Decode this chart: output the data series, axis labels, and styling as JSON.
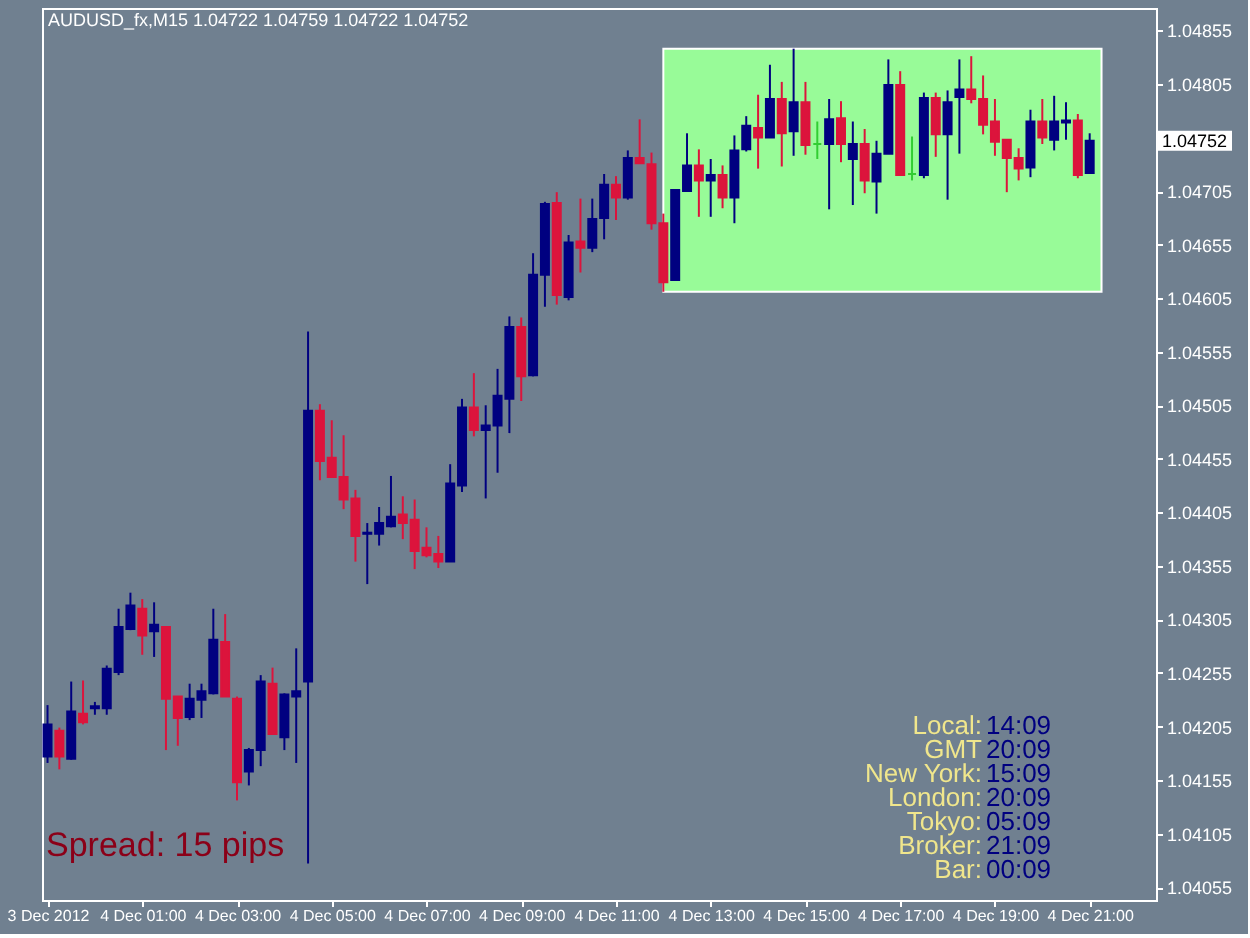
{
  "chart_data": {
    "type": "candlestick",
    "title": "AUDUSD_fx,M15  1.04722 1.04759 1.04722 1.04752",
    "x": [
      "2012-12-03T23:00",
      "2012-12-03T23:15",
      "2012-12-03T23:30",
      "2012-12-03T23:45",
      "2012-12-04T00:00",
      "2012-12-04T00:15",
      "2012-12-04T00:30",
      "2012-12-04T00:45",
      "2012-12-04T01:00",
      "2012-12-04T01:15",
      "2012-12-04T01:30",
      "2012-12-04T01:45",
      "2012-12-04T02:00",
      "2012-12-04T02:15",
      "2012-12-04T02:30",
      "2012-12-04T02:45",
      "2012-12-04T03:00",
      "2012-12-04T03:15",
      "2012-12-04T03:30",
      "2012-12-04T03:45",
      "2012-12-04T04:00",
      "2012-12-04T04:15",
      "2012-12-04T04:30",
      "2012-12-04T04:45",
      "2012-12-04T05:00",
      "2012-12-04T05:15",
      "2012-12-04T05:30",
      "2012-12-04T05:45",
      "2012-12-04T06:00",
      "2012-12-04T06:15",
      "2012-12-04T06:30",
      "2012-12-04T06:45",
      "2012-12-04T07:00",
      "2012-12-04T07:15",
      "2012-12-04T07:30",
      "2012-12-04T07:45",
      "2012-12-04T08:00",
      "2012-12-04T08:15",
      "2012-12-04T08:30",
      "2012-12-04T08:45",
      "2012-12-04T09:00",
      "2012-12-04T09:15",
      "2012-12-04T09:30",
      "2012-12-04T09:45",
      "2012-12-04T10:00",
      "2012-12-04T10:15",
      "2012-12-04T10:30",
      "2012-12-04T10:45",
      "2012-12-04T11:00",
      "2012-12-04T11:15",
      "2012-12-04T11:30",
      "2012-12-04T11:45",
      "2012-12-04T12:00",
      "2012-12-04T12:15",
      "2012-12-04T12:30",
      "2012-12-04T12:45",
      "2012-12-04T13:00",
      "2012-12-04T13:15",
      "2012-12-04T13:30",
      "2012-12-04T13:45",
      "2012-12-04T14:00",
      "2012-12-04T14:15",
      "2012-12-04T14:30",
      "2012-12-04T14:45",
      "2012-12-04T15:00",
      "2012-12-04T15:15",
      "2012-12-04T15:30",
      "2012-12-04T15:45",
      "2012-12-04T16:00",
      "2012-12-04T16:15",
      "2012-12-04T16:30",
      "2012-12-04T16:45",
      "2012-12-04T17:00",
      "2012-12-04T17:15",
      "2012-12-04T17:30",
      "2012-12-04T17:45",
      "2012-12-04T18:00",
      "2012-12-04T18:15",
      "2012-12-04T18:30",
      "2012-12-04T18:45",
      "2012-12-04T19:00",
      "2012-12-04T19:15",
      "2012-12-04T19:30",
      "2012-12-04T19:45",
      "2012-12-04T20:00",
      "2012-12-04T20:15",
      "2012-12-04T20:30",
      "2012-12-04T20:45",
      "2012-12-04T21:00"
    ],
    "ohlc": [
      [
        1.04177,
        1.04225,
        1.04171,
        1.04207
      ],
      [
        1.04201,
        1.04204,
        1.04165,
        1.04177
      ],
      [
        1.04175,
        1.04247,
        1.04174,
        1.04219
      ],
      [
        1.04217,
        1.04248,
        1.04207,
        1.04209
      ],
      [
        1.04222,
        1.04228,
        1.04216,
        1.04224
      ],
      [
        1.04222,
        1.04262,
        1.04216,
        1.04259
      ],
      [
        1.04256,
        1.04315,
        1.04253,
        1.04298
      ],
      [
        1.04296,
        1.0433,
        1.04295,
        1.04318
      ],
      [
        1.04315,
        1.04324,
        1.04272,
        1.0429
      ],
      [
        1.04294,
        1.04321,
        1.0427,
        1.043
      ],
      [
        1.04298,
        1.04298,
        1.04183,
        1.04231
      ],
      [
        1.04233,
        1.04233,
        1.04187,
        1.04213
      ],
      [
        1.04214,
        1.04245,
        1.04211,
        1.04231
      ],
      [
        1.0423,
        1.04245,
        1.04213,
        1.04238
      ],
      [
        1.04236,
        1.04315,
        1.04235,
        1.04286
      ],
      [
        1.04284,
        1.0431,
        1.04233,
        1.04233
      ],
      [
        1.04231,
        1.04233,
        1.04136,
        1.04153
      ],
      [
        1.04163,
        1.04185,
        1.0415,
        1.04183
      ],
      [
        1.04183,
        1.04253,
        1.04168,
        1.04247
      ],
      [
        1.04245,
        1.0426,
        1.04198,
        1.04198
      ],
      [
        1.04195,
        1.04236,
        1.04183,
        1.04235
      ],
      [
        1.04233,
        1.04278,
        1.04171,
        1.04238
      ],
      [
        1.04247,
        1.04574,
        1.04077,
        1.045
      ],
      [
        1.045,
        1.04506,
        1.04435,
        1.04453
      ],
      [
        1.04456,
        1.04491,
        1.04438,
        1.04438
      ],
      [
        1.04438,
        1.04477,
        1.04408,
        1.04417
      ],
      [
        1.04418,
        1.04426,
        1.04359,
        1.04383
      ],
      [
        1.04385,
        1.04395,
        1.04338,
        1.04386
      ],
      [
        1.04385,
        1.0441,
        1.04374,
        1.04395
      ],
      [
        1.04392,
        1.04439,
        1.04391,
        1.04401
      ],
      [
        1.04403,
        1.0442,
        1.0438,
        1.04395
      ],
      [
        1.04398,
        1.04417,
        1.04352,
        1.04369
      ],
      [
        1.04372,
        1.04391,
        1.04363,
        1.04365
      ],
      [
        1.04366,
        1.04383,
        1.04353,
        1.04359
      ],
      [
        1.04359,
        1.0445,
        1.04359,
        1.04432
      ],
      [
        1.0443,
        1.04511,
        1.04424,
        1.04503
      ],
      [
        1.04503,
        1.04535,
        1.04476,
        1.04482
      ],
      [
        1.04482,
        1.04505,
        1.04418,
        1.04486
      ],
      [
        1.04486,
        1.04539,
        1.04442,
        1.04514
      ],
      [
        1.04511,
        1.04588,
        1.04479,
        1.04578
      ],
      [
        1.04578,
        1.04587,
        1.04509,
        1.04532
      ],
      [
        1.04533,
        1.04647,
        1.04532,
        1.04627
      ],
      [
        1.04627,
        1.04695,
        1.04597,
        1.04693
      ],
      [
        1.04694,
        1.04704,
        1.04599,
        1.04608
      ],
      [
        1.04606,
        1.04664,
        1.04603,
        1.04657
      ],
      [
        1.04658,
        1.04698,
        1.04629,
        1.04652
      ],
      [
        1.04652,
        1.04698,
        1.04648,
        1.04679
      ],
      [
        1.0468,
        1.04721,
        1.0466,
        1.04711
      ],
      [
        1.04711,
        1.04719,
        1.04678,
        1.04699
      ],
      [
        1.04699,
        1.04743,
        1.04697,
        1.04736
      ],
      [
        1.04736,
        1.04772,
        1.04731,
        1.04731
      ],
      [
        1.0473,
        1.04741,
        1.04669,
        1.04675
      ],
      [
        1.04675,
        1.04684,
        1.04611,
        1.0462
      ],
      [
        1.04622,
        1.04706,
        1.04622,
        1.04706
      ],
      [
        1.04705,
        1.04759,
        1.04705,
        1.04729
      ],
      [
        1.04729,
        1.04744,
        1.04681,
        1.04715
      ],
      [
        1.04715,
        1.04735,
        1.04681,
        1.0472
      ],
      [
        1.0472,
        1.04729,
        1.04689,
        1.04699
      ],
      [
        1.04699,
        1.04757,
        1.04675,
        1.04743
      ],
      [
        1.04744,
        1.04775,
        1.04742,
        1.04766
      ],
      [
        1.04764,
        1.04795,
        1.04726,
        1.04755
      ],
      [
        1.04755,
        1.04823,
        1.04755,
        1.04791
      ],
      [
        1.04791,
        1.04807,
        1.04728,
        1.04759
      ],
      [
        1.04761,
        1.04838,
        1.04738,
        1.04788
      ],
      [
        1.04788,
        1.04807,
        1.04739,
        1.04748
      ],
      [
        1.04749,
        1.0477,
        1.04735,
        1.04749
      ],
      [
        1.04749,
        1.04791,
        1.04688,
        1.04772
      ],
      [
        1.04773,
        1.04789,
        1.04732,
        1.04749
      ],
      [
        1.04735,
        1.0477,
        1.04692,
        1.04749
      ],
      [
        1.04749,
        1.04763,
        1.04703,
        1.04715
      ],
      [
        1.04714,
        1.04752,
        1.04684,
        1.0474
      ],
      [
        1.0474,
        1.04828,
        1.0474,
        1.04804
      ],
      [
        1.04804,
        1.04817,
        1.0472,
        1.0472
      ],
      [
        1.04721,
        1.04756,
        1.04715,
        1.04721
      ],
      [
        1.0472,
        1.04797,
        1.04717,
        1.04792
      ],
      [
        1.04792,
        1.04797,
        1.04737,
        1.04758
      ],
      [
        1.04758,
        1.04799,
        1.04697,
        1.04788
      ],
      [
        1.04793,
        1.04828,
        1.0474,
        1.048
      ],
      [
        1.048,
        1.04831,
        1.04787,
        1.04791
      ],
      [
        1.04791,
        1.04813,
        1.04758,
        1.04767
      ],
      [
        1.0477,
        1.04791,
        1.04738,
        1.04751
      ],
      [
        1.04753,
        1.04753,
        1.04704,
        1.04736
      ],
      [
        1.04736,
        1.04745,
        1.04715,
        1.04726
      ],
      [
        1.04727,
        1.04781,
        1.04718,
        1.0477
      ],
      [
        1.0477,
        1.04791,
        1.04749,
        1.04755
      ],
      [
        1.04753,
        1.04794,
        1.04743,
        1.0477
      ],
      [
        1.04769,
        1.04788,
        1.04753,
        1.04771
      ],
      [
        1.04771,
        1.04777,
        1.04717,
        1.0472
      ],
      [
        1.04722,
        1.04759,
        1.04722,
        1.04752
      ]
    ],
    "colors": [
      "#000080",
      "#dc143c",
      "#000080",
      "#dc143c",
      "#000080",
      "#000080",
      "#000080",
      "#000080",
      "#dc143c",
      "#000080",
      "#dc143c",
      "#dc143c",
      "#000080",
      "#000080",
      "#000080",
      "#dc143c",
      "#dc143c",
      "#000080",
      "#000080",
      "#dc143c",
      "#000080",
      "#000080",
      "#000080",
      "#dc143c",
      "#dc143c",
      "#dc143c",
      "#dc143c",
      "#000080",
      "#000080",
      "#000080",
      "#dc143c",
      "#dc143c",
      "#dc143c",
      "#dc143c",
      "#000080",
      "#000080",
      "#dc143c",
      "#000080",
      "#000080",
      "#000080",
      "#dc143c",
      "#000080",
      "#000080",
      "#dc143c",
      "#000080",
      "#dc143c",
      "#000080",
      "#000080",
      "#dc143c",
      "#000080",
      "#dc143c",
      "#dc143c",
      "#dc143c",
      "#000080",
      "#000080",
      "#dc143c",
      "#000080",
      "#dc143c",
      "#000080",
      "#000080",
      "#dc143c",
      "#000080",
      "#dc143c",
      "#000080",
      "#dc143c",
      "#32cd32",
      "#000080",
      "#dc143c",
      "#000080",
      "#dc143c",
      "#000080",
      "#000080",
      "#dc143c",
      "#32cd32",
      "#000080",
      "#dc143c",
      "#000080",
      "#000080",
      "#dc143c",
      "#dc143c",
      "#dc143c",
      "#dc143c",
      "#dc143c",
      "#000080",
      "#dc143c",
      "#000080",
      "#000080",
      "#dc143c",
      "#000080"
    ],
    "xlim": [
      "2012-12-03T22:53",
      "2012-12-04T22:24"
    ],
    "xticks": [
      {
        "value": "2012-12-03T23:00",
        "label": "3 Dec 2012"
      },
      {
        "value": "2012-12-04T01:00",
        "label": "4 Dec 01:00"
      },
      {
        "value": "2012-12-04T03:00",
        "label": "4 Dec 03:00"
      },
      {
        "value": "2012-12-04T05:00",
        "label": "4 Dec 05:00"
      },
      {
        "value": "2012-12-04T07:00",
        "label": "4 Dec 07:00"
      },
      {
        "value": "2012-12-04T09:00",
        "label": "4 Dec 09:00"
      },
      {
        "value": "2012-12-04T11:00",
        "label": "4 Dec 11:00"
      },
      {
        "value": "2012-12-04T13:00",
        "label": "4 Dec 13:00"
      },
      {
        "value": "2012-12-04T15:00",
        "label": "4 Dec 15:00"
      },
      {
        "value": "2012-12-04T17:00",
        "label": "4 Dec 17:00"
      },
      {
        "value": "2012-12-04T19:00",
        "label": "4 Dec 19:00"
      },
      {
        "value": "2012-12-04T21:00",
        "label": "4 Dec 21:00"
      }
    ],
    "ylim": [
      1.04043,
      1.04876
    ],
    "yticks": [
      1.04055,
      1.04105,
      1.04155,
      1.04205,
      1.04255,
      1.04305,
      1.04355,
      1.04405,
      1.04455,
      1.04505,
      1.04555,
      1.04605,
      1.04655,
      1.04705,
      1.04805,
      1.04855
    ],
    "bands": [
      {
        "axis": "x",
        "from": "2012-12-04T12:00",
        "to": "2012-12-04T21:15",
        "color": "#98fb98"
      }
    ],
    "annotations": [
      "Spread: 15 pips",
      "1.04752",
      "Local:",
      "14:09",
      "GMT",
      "20:09",
      "New York:",
      "15:09",
      "London:",
      "20:09",
      "Tokyo:",
      "05:09",
      "Broker:",
      "21:09",
      "Bar:",
      "00:09"
    ]
  }
}
